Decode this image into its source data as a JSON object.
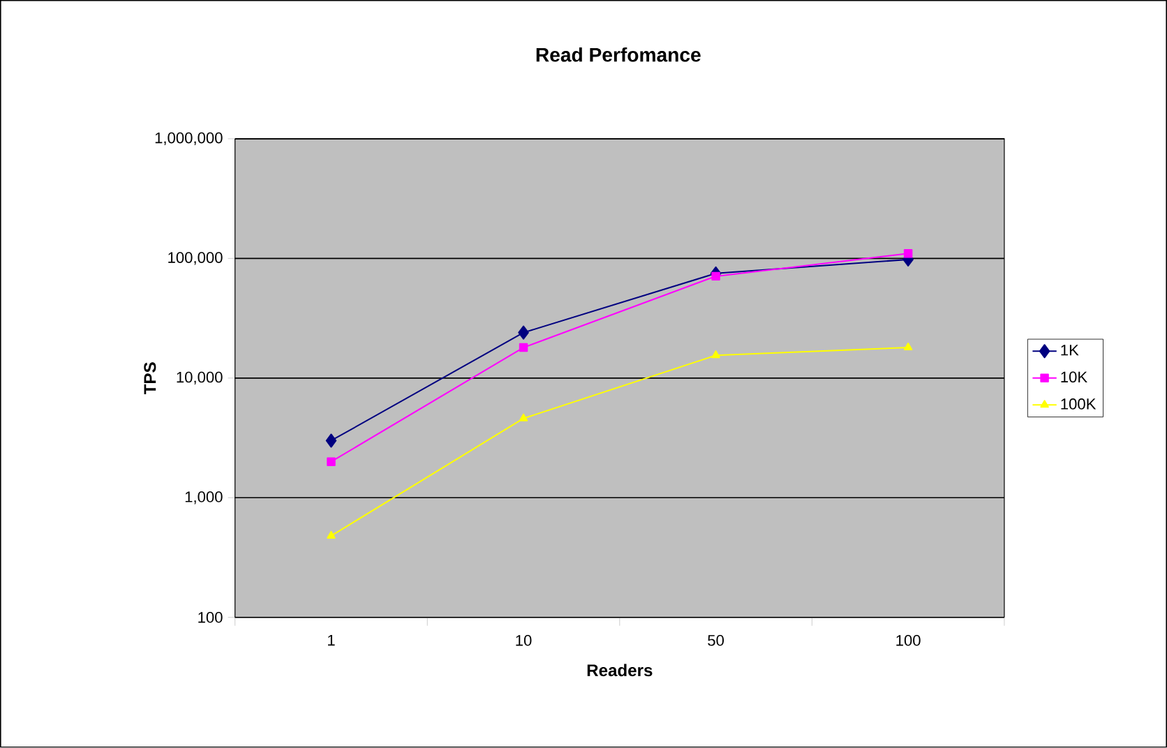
{
  "chart_data": {
    "type": "line",
    "title": "Read Perfomance",
    "xlabel": "Readers",
    "ylabel": "TPS",
    "categories": [
      "1",
      "10",
      "50",
      "100"
    ],
    "series": [
      {
        "name": "1K",
        "color": "#000080",
        "marker": "diamond",
        "values": [
          3000,
          24000,
          75000,
          98000
        ]
      },
      {
        "name": "10K",
        "color": "#ff00ff",
        "marker": "square",
        "values": [
          2000,
          18000,
          71000,
          110000
        ]
      },
      {
        "name": "100K",
        "color": "#ffff00",
        "marker": "triangle",
        "values": [
          480,
          4600,
          15500,
          18000
        ]
      }
    ],
    "log": "y",
    "ylim": [
      100,
      1000000
    ],
    "yticks": [
      {
        "value": 100,
        "label": "100"
      },
      {
        "value": 1000,
        "label": "1,000"
      },
      {
        "value": 10000,
        "label": "10,000"
      },
      {
        "value": 100000,
        "label": "100,000"
      },
      {
        "value": 1000000,
        "label": "1,000,000"
      }
    ],
    "grid": "y",
    "legend": "right",
    "line_style": "solid"
  }
}
